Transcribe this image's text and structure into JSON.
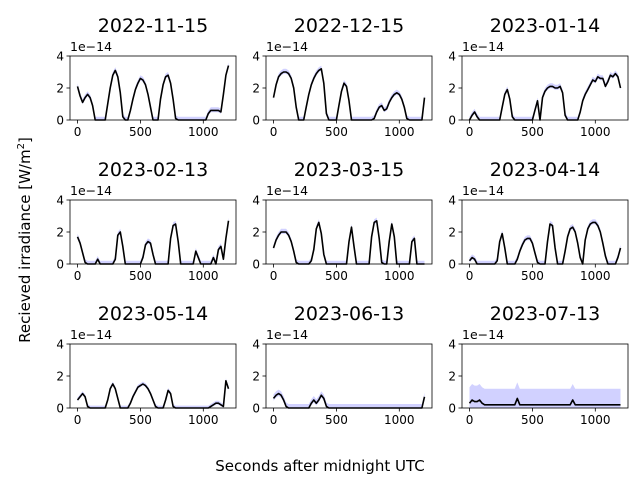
{
  "figure": {
    "ylabel": "Recieved irradiance [W/m",
    "ylabel_sup": "2",
    "ylabel_end": "]",
    "xlabel": "Seconds after midnight UTC",
    "line_color": "#000000",
    "band_color": "#0000ff"
  },
  "chart_data": [
    {
      "type": "line",
      "title": "2022-11-15",
      "offset_text": "1e−14",
      "xlim": [
        -60,
        1260
      ],
      "ylim": [
        0,
        4
      ],
      "xticks": [
        0,
        500,
        1000
      ],
      "yticks": [
        0,
        2,
        4
      ],
      "x": [
        0,
        20,
        40,
        60,
        80,
        100,
        120,
        140,
        160,
        180,
        200,
        220,
        240,
        260,
        280,
        300,
        320,
        340,
        360,
        380,
        400,
        420,
        440,
        460,
        480,
        500,
        520,
        540,
        560,
        580,
        600,
        620,
        640,
        660,
        680,
        700,
        720,
        740,
        760,
        780,
        800,
        820,
        840,
        860,
        880,
        900,
        920,
        940,
        960,
        980,
        1000,
        1020,
        1040,
        1060,
        1080,
        1100,
        1120,
        1140,
        1160,
        1180,
        1200
      ],
      "y": [
        2.1,
        1.5,
        1.1,
        1.4,
        1.6,
        1.4,
        0.9,
        0.0,
        0.0,
        0.0,
        0.0,
        0.0,
        1.0,
        2.0,
        2.8,
        3.1,
        2.7,
        1.7,
        0.2,
        0.0,
        0.0,
        0.6,
        1.3,
        1.9,
        2.3,
        2.6,
        2.5,
        2.2,
        1.6,
        0.8,
        0.0,
        0.0,
        0.0,
        1.3,
        2.2,
        2.7,
        2.8,
        2.3,
        1.3,
        0.1,
        0.0,
        0.0,
        0.0,
        0.0,
        0.0,
        0.0,
        0.0,
        0.0,
        0.0,
        0.0,
        0.0,
        0.0,
        0.4,
        0.6,
        0.6,
        0.6,
        0.6,
        0.5,
        1.6,
        2.8,
        3.4
      ],
      "band": 0.2
    },
    {
      "type": "line",
      "title": "2022-12-15",
      "offset_text": "1e−14",
      "xlim": [
        -60,
        1260
      ],
      "ylim": [
        0,
        4
      ],
      "xticks": [
        0,
        500,
        1000
      ],
      "yticks": [
        0,
        2,
        4
      ],
      "x": [
        0,
        20,
        40,
        60,
        80,
        100,
        120,
        140,
        160,
        180,
        200,
        220,
        240,
        260,
        280,
        300,
        320,
        340,
        360,
        380,
        400,
        420,
        440,
        460,
        480,
        500,
        520,
        540,
        560,
        580,
        600,
        620,
        640,
        660,
        680,
        700,
        720,
        740,
        760,
        780,
        800,
        820,
        840,
        860,
        880,
        900,
        920,
        940,
        960,
        980,
        1000,
        1020,
        1040,
        1060,
        1080,
        1100,
        1120,
        1140,
        1160,
        1180,
        1200
      ],
      "y": [
        1.4,
        2.2,
        2.7,
        2.9,
        3.0,
        3.0,
        2.9,
        2.6,
        2.0,
        0.8,
        0.0,
        0.0,
        0.0,
        0.8,
        1.6,
        2.2,
        2.6,
        2.9,
        3.1,
        3.2,
        2.3,
        0.4,
        0.0,
        0.0,
        0.0,
        0.0,
        0.9,
        1.8,
        2.3,
        2.1,
        1.2,
        0.0,
        0.0,
        0.0,
        0.0,
        0.0,
        0.0,
        0.0,
        0.0,
        0.0,
        0.1,
        0.5,
        0.8,
        0.9,
        0.6,
        0.7,
        1.1,
        1.4,
        1.6,
        1.7,
        1.6,
        1.3,
        0.8,
        0.1,
        0.0,
        0.0,
        0.0,
        0.0,
        0.0,
        0.0,
        1.4
      ],
      "band": 0.2
    },
    {
      "type": "line",
      "title": "2023-01-14",
      "offset_text": "1e−14",
      "xlim": [
        -60,
        1260
      ],
      "ylim": [
        0,
        4
      ],
      "xticks": [
        0,
        500,
        1000
      ],
      "yticks": [
        0,
        2,
        4
      ],
      "x": [
        0,
        20,
        40,
        60,
        80,
        100,
        120,
        140,
        160,
        180,
        200,
        220,
        240,
        260,
        280,
        300,
        320,
        340,
        360,
        380,
        400,
        420,
        440,
        460,
        480,
        500,
        520,
        540,
        560,
        580,
        600,
        620,
        640,
        660,
        680,
        700,
        720,
        740,
        760,
        780,
        800,
        820,
        840,
        860,
        880,
        900,
        920,
        940,
        960,
        980,
        1000,
        1020,
        1040,
        1060,
        1080,
        1100,
        1120,
        1140,
        1160,
        1180,
        1200
      ],
      "y": [
        0.0,
        0.3,
        0.5,
        0.2,
        0.0,
        0.0,
        0.0,
        0.0,
        0.0,
        0.0,
        0.0,
        0.0,
        0.0,
        0.8,
        1.6,
        1.9,
        1.3,
        0.2,
        0.0,
        0.0,
        0.0,
        0.0,
        0.0,
        0.0,
        0.0,
        0.0,
        0.6,
        1.2,
        0.0,
        1.4,
        1.8,
        2.0,
        2.1,
        2.1,
        2.0,
        2.0,
        2.1,
        1.7,
        0.3,
        0.0,
        0.0,
        0.0,
        0.0,
        0.0,
        0.5,
        1.2,
        1.6,
        1.9,
        2.2,
        2.5,
        2.4,
        2.7,
        2.6,
        2.6,
        2.1,
        2.4,
        2.8,
        2.7,
        2.9,
        2.7,
        2.0
      ],
      "band": 0.2
    },
    {
      "type": "line",
      "title": "2023-02-13",
      "offset_text": "1e−14",
      "xlim": [
        -60,
        1260
      ],
      "ylim": [
        0,
        4
      ],
      "xticks": [
        0,
        500,
        1000
      ],
      "yticks": [
        0,
        2,
        4
      ],
      "x": [
        0,
        20,
        40,
        60,
        80,
        100,
        120,
        140,
        160,
        180,
        200,
        220,
        240,
        260,
        280,
        300,
        320,
        340,
        360,
        380,
        400,
        420,
        440,
        460,
        480,
        500,
        520,
        540,
        560,
        580,
        600,
        620,
        640,
        660,
        680,
        700,
        720,
        740,
        760,
        780,
        800,
        820,
        840,
        860,
        880,
        900,
        920,
        940,
        960,
        980,
        1000,
        1020,
        1040,
        1060,
        1080,
        1100,
        1120,
        1140,
        1160,
        1180,
        1200
      ],
      "y": [
        1.7,
        1.3,
        0.7,
        0.1,
        0.0,
        0.0,
        0.0,
        0.0,
        0.3,
        0.0,
        0.0,
        0.0,
        0.0,
        0.0,
        0.0,
        0.3,
        1.8,
        2.0,
        1.1,
        0.0,
        0.0,
        0.0,
        0.0,
        0.0,
        0.0,
        0.0,
        0.4,
        1.2,
        1.4,
        1.3,
        0.6,
        0.0,
        0.0,
        0.0,
        0.0,
        0.0,
        0.0,
        1.6,
        2.4,
        2.5,
        1.4,
        0.0,
        0.0,
        0.0,
        0.0,
        0.0,
        0.0,
        0.8,
        0.4,
        0.0,
        0.0,
        0.0,
        0.0,
        0.0,
        0.4,
        0.0,
        0.9,
        1.1,
        0.3,
        1.6,
        2.7
      ],
      "band": 0.2
    },
    {
      "type": "line",
      "title": "2023-03-15",
      "offset_text": "1e−14",
      "xlim": [
        -60,
        1260
      ],
      "ylim": [
        0,
        4
      ],
      "xticks": [
        0,
        500,
        1000
      ],
      "yticks": [
        0,
        2,
        4
      ],
      "x": [
        0,
        20,
        40,
        60,
        80,
        100,
        120,
        140,
        160,
        180,
        200,
        220,
        240,
        260,
        280,
        300,
        320,
        340,
        360,
        380,
        400,
        420,
        440,
        460,
        480,
        500,
        520,
        540,
        560,
        580,
        600,
        620,
        640,
        660,
        680,
        700,
        720,
        740,
        760,
        780,
        800,
        820,
        840,
        860,
        880,
        900,
        920,
        940,
        960,
        980,
        1000,
        1020,
        1040,
        1060,
        1080,
        1100,
        1120,
        1140,
        1160,
        1180,
        1200
      ],
      "y": [
        1.0,
        1.5,
        1.8,
        2.0,
        2.0,
        2.0,
        1.8,
        1.4,
        0.8,
        0.1,
        0.0,
        0.0,
        0.0,
        0.0,
        0.0,
        0.2,
        0.9,
        2.2,
        2.6,
        1.9,
        0.6,
        0.0,
        0.0,
        0.0,
        0.0,
        0.0,
        0.0,
        0.0,
        0.0,
        0.0,
        1.4,
        2.3,
        1.1,
        0.0,
        0.0,
        0.0,
        0.0,
        0.0,
        0.0,
        1.7,
        2.6,
        2.7,
        1.6,
        0.1,
        0.0,
        0.0,
        1.4,
        2.5,
        1.7,
        0.0,
        0.0,
        0.0,
        0.0,
        0.0,
        0.0,
        1.4,
        1.6,
        0.0,
        0.0,
        0.0,
        0.0
      ],
      "band": 0.2
    },
    {
      "type": "line",
      "title": "2023-04-14",
      "offset_text": "1e−14",
      "xlim": [
        -60,
        1260
      ],
      "ylim": [
        0,
        4
      ],
      "xticks": [
        0,
        500,
        1000
      ],
      "yticks": [
        0,
        2,
        4
      ],
      "x": [
        0,
        20,
        40,
        60,
        80,
        100,
        120,
        140,
        160,
        180,
        200,
        220,
        240,
        260,
        280,
        300,
        320,
        340,
        360,
        380,
        400,
        420,
        440,
        460,
        480,
        500,
        520,
        540,
        560,
        580,
        600,
        620,
        640,
        660,
        680,
        700,
        720,
        740,
        760,
        780,
        800,
        820,
        840,
        860,
        880,
        900,
        920,
        940,
        960,
        980,
        1000,
        1020,
        1040,
        1060,
        1080,
        1100,
        1120,
        1140,
        1160,
        1180,
        1200
      ],
      "y": [
        0.2,
        0.4,
        0.3,
        0.0,
        0.0,
        0.0,
        0.0,
        0.0,
        0.0,
        0.0,
        0.0,
        0.2,
        1.4,
        1.9,
        1.0,
        0.0,
        0.0,
        0.0,
        0.0,
        0.3,
        0.8,
        1.2,
        1.5,
        1.6,
        1.6,
        1.3,
        0.7,
        0.1,
        0.0,
        0.0,
        0.0,
        1.4,
        2.5,
        2.4,
        1.0,
        0.0,
        0.0,
        0.0,
        0.8,
        1.7,
        2.2,
        2.3,
        2.0,
        1.3,
        0.4,
        0.0,
        1.5,
        2.2,
        2.5,
        2.6,
        2.6,
        2.4,
        2.0,
        1.3,
        0.5,
        0.0,
        0.0,
        0.0,
        0.0,
        0.4,
        1.0
      ],
      "band": 0.2
    },
    {
      "type": "line",
      "title": "2023-05-14",
      "offset_text": "1e−14",
      "xlim": [
        -60,
        1260
      ],
      "ylim": [
        0,
        4
      ],
      "xticks": [
        0,
        500,
        1000
      ],
      "yticks": [
        0,
        2,
        4
      ],
      "x": [
        0,
        20,
        40,
        60,
        80,
        100,
        120,
        140,
        160,
        180,
        200,
        220,
        240,
        260,
        280,
        300,
        320,
        340,
        360,
        380,
        400,
        420,
        440,
        460,
        480,
        500,
        520,
        540,
        560,
        580,
        600,
        620,
        640,
        660,
        680,
        700,
        720,
        740,
        760,
        780,
        800,
        820,
        840,
        860,
        880,
        900,
        920,
        940,
        960,
        980,
        1000,
        1020,
        1040,
        1060,
        1080,
        1100,
        1120,
        1140,
        1160,
        1180,
        1200
      ],
      "y": [
        0.5,
        0.7,
        0.9,
        0.7,
        0.1,
        0.0,
        0.0,
        0.0,
        0.0,
        0.0,
        0.0,
        0.0,
        0.5,
        1.2,
        1.5,
        1.2,
        0.6,
        0.0,
        0.0,
        0.0,
        0.0,
        0.3,
        0.7,
        1.0,
        1.3,
        1.4,
        1.5,
        1.4,
        1.2,
        0.9,
        0.5,
        0.1,
        0.0,
        0.0,
        0.0,
        0.5,
        1.1,
        0.9,
        0.1,
        0.0,
        0.0,
        0.0,
        0.0,
        0.0,
        0.0,
        0.0,
        0.0,
        0.0,
        0.0,
        0.0,
        0.0,
        0.0,
        0.0,
        0.1,
        0.2,
        0.3,
        0.3,
        0.2,
        0.1,
        1.7,
        1.2
      ],
      "band": 0.15
    },
    {
      "type": "line",
      "title": "2023-06-13",
      "offset_text": "1e−14",
      "xlim": [
        -60,
        1260
      ],
      "ylim": [
        0,
        4
      ],
      "xticks": [
        0,
        500,
        1000
      ],
      "yticks": [
        0,
        2,
        4
      ],
      "x": [
        0,
        20,
        40,
        60,
        80,
        100,
        120,
        140,
        160,
        180,
        200,
        220,
        240,
        260,
        280,
        300,
        320,
        340,
        360,
        380,
        400,
        420,
        440,
        460,
        480,
        500,
        520,
        540,
        560,
        580,
        600,
        620,
        640,
        660,
        680,
        700,
        720,
        740,
        760,
        780,
        800,
        820,
        840,
        860,
        880,
        900,
        920,
        940,
        960,
        980,
        1000,
        1020,
        1040,
        1060,
        1080,
        1100,
        1120,
        1140,
        1160,
        1180,
        1200
      ],
      "y": [
        0.6,
        0.8,
        0.9,
        0.8,
        0.5,
        0.1,
        0.0,
        0.0,
        0.0,
        0.0,
        0.0,
        0.0,
        0.0,
        0.0,
        0.0,
        0.3,
        0.5,
        0.3,
        0.5,
        0.8,
        0.6,
        0.1,
        0.0,
        0.0,
        0.0,
        0.0,
        0.0,
        0.0,
        0.0,
        0.0,
        0.0,
        0.0,
        0.0,
        0.0,
        0.0,
        0.0,
        0.0,
        0.0,
        0.0,
        0.0,
        0.0,
        0.0,
        0.0,
        0.0,
        0.0,
        0.0,
        0.0,
        0.0,
        0.0,
        0.0,
        0.0,
        0.0,
        0.0,
        0.0,
        0.0,
        0.0,
        0.0,
        0.0,
        0.0,
        0.0,
        0.7
      ],
      "band": 0.25
    },
    {
      "type": "line",
      "title": "2023-07-13",
      "offset_text": "1e−14",
      "xlim": [
        -60,
        1260
      ],
      "ylim": [
        0,
        4
      ],
      "xticks": [
        0,
        500,
        1000
      ],
      "yticks": [
        0,
        2,
        4
      ],
      "x": [
        0,
        20,
        40,
        60,
        80,
        100,
        120,
        140,
        160,
        180,
        200,
        220,
        240,
        260,
        280,
        300,
        320,
        340,
        360,
        380,
        400,
        420,
        440,
        460,
        480,
        500,
        520,
        540,
        560,
        580,
        600,
        620,
        640,
        660,
        680,
        700,
        720,
        740,
        760,
        780,
        800,
        820,
        840,
        860,
        880,
        900,
        920,
        940,
        960,
        980,
        1000,
        1020,
        1040,
        1060,
        1080,
        1100,
        1120,
        1140,
        1160,
        1180,
        1200
      ],
      "y": [
        0.3,
        0.5,
        0.4,
        0.4,
        0.5,
        0.3,
        0.2,
        0.2,
        0.2,
        0.2,
        0.2,
        0.2,
        0.2,
        0.2,
        0.2,
        0.2,
        0.2,
        0.2,
        0.2,
        0.6,
        0.2,
        0.2,
        0.2,
        0.2,
        0.2,
        0.2,
        0.2,
        0.2,
        0.2,
        0.2,
        0.2,
        0.2,
        0.2,
        0.2,
        0.2,
        0.2,
        0.2,
        0.2,
        0.2,
        0.2,
        0.2,
        0.5,
        0.2,
        0.2,
        0.2,
        0.2,
        0.2,
        0.2,
        0.2,
        0.2,
        0.2,
        0.2,
        0.2,
        0.2,
        0.2,
        0.2,
        0.2,
        0.2,
        0.2,
        0.2,
        0.2
      ],
      "band": 1.0
    }
  ]
}
